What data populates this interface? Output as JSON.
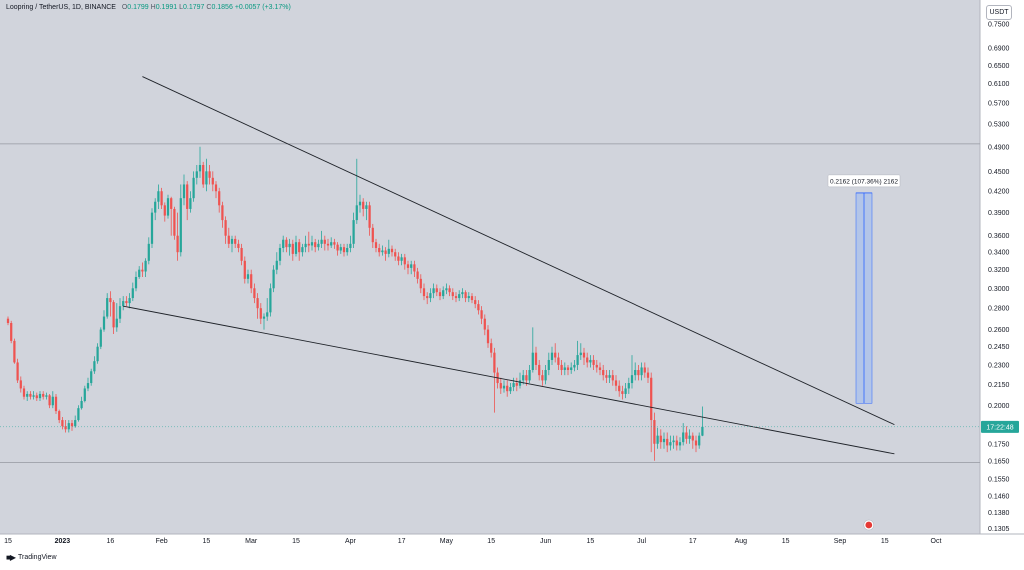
{
  "header": {
    "symbol": "Loopring / TetherUS, 1D, BINANCE",
    "ohlc": [
      {
        "label": "O",
        "value": "0.1799"
      },
      {
        "label": "H",
        "value": "0.1991"
      },
      {
        "label": "L",
        "value": "0.1797"
      },
      {
        "label": "C",
        "value": "0.1856"
      }
    ],
    "change": "+0.0057 (+3.17%)"
  },
  "currency": "USDT",
  "branding": "TradingView",
  "colors": {
    "background": "#d1d4dc",
    "up": "#26a69a",
    "down": "#ef5350",
    "trendline": "#1f2329",
    "measure_fill": "#a8c0ec",
    "measure_stroke": "#2962ff",
    "price_badge": "#26a69a"
  },
  "chart_data": {
    "type": "candlestick",
    "title": "Loopring / TetherUS, 1D, BINANCE",
    "log_scale": true,
    "y_range": [
      0.128,
      0.815
    ],
    "y_ticks": [
      "0.7500",
      "0.6900",
      "0.6500",
      "0.6100",
      "0.5700",
      "0.5300",
      "0.4900",
      "0.4500",
      "0.4200",
      "0.3900",
      "0.3600",
      "0.3400",
      "0.3200",
      "0.3000",
      "0.2800",
      "0.2600",
      "0.2450",
      "0.2300",
      "0.2150",
      "0.2000",
      "0.1750",
      "0.1650",
      "0.1550",
      "0.1460",
      "0.1380",
      "0.1305"
    ],
    "x_ticks": [
      {
        "label": "15",
        "date": "2022-12-15"
      },
      {
        "label": "2023",
        "date": "2023-01-01"
      },
      {
        "label": "16",
        "date": "2023-01-16"
      },
      {
        "label": "Feb",
        "date": "2023-02-01"
      },
      {
        "label": "15",
        "date": "2023-02-15"
      },
      {
        "label": "Mar",
        "date": "2023-03-01"
      },
      {
        "label": "15",
        "date": "2023-03-15"
      },
      {
        "label": "Apr",
        "date": "2023-04-01"
      },
      {
        "label": "17",
        "date": "2023-04-17"
      },
      {
        "label": "May",
        "date": "2023-05-01"
      },
      {
        "label": "15",
        "date": "2023-05-15"
      },
      {
        "label": "Jun",
        "date": "2023-06-01"
      },
      {
        "label": "15",
        "date": "2023-06-15"
      },
      {
        "label": "Jul",
        "date": "2023-07-01"
      },
      {
        "label": "17",
        "date": "2023-07-17"
      },
      {
        "label": "Aug",
        "date": "2023-08-01"
      },
      {
        "label": "15",
        "date": "2023-08-15"
      },
      {
        "label": "Sep",
        "date": "2023-09-01"
      },
      {
        "label": "15",
        "date": "2023-09-15"
      },
      {
        "label": "Oct",
        "date": "2023-10-01"
      }
    ],
    "start_date": "2022-12-15",
    "candles": [
      [
        0.27,
        0.266,
        0.272,
        0.264
      ],
      [
        0.266,
        0.25,
        0.268,
        0.248
      ],
      [
        0.25,
        0.232,
        0.252,
        0.231
      ],
      [
        0.232,
        0.218,
        0.235,
        0.216
      ],
      [
        0.218,
        0.212,
        0.221,
        0.209
      ],
      [
        0.212,
        0.206,
        0.214,
        0.204
      ],
      [
        0.206,
        0.208,
        0.21,
        0.203
      ],
      [
        0.208,
        0.206,
        0.21,
        0.204
      ],
      [
        0.206,
        0.207,
        0.21,
        0.204
      ],
      [
        0.207,
        0.205,
        0.209,
        0.203
      ],
      [
        0.205,
        0.208,
        0.21,
        0.203
      ],
      [
        0.208,
        0.206,
        0.21,
        0.204
      ],
      [
        0.206,
        0.207,
        0.209,
        0.204
      ],
      [
        0.207,
        0.2,
        0.208,
        0.198
      ],
      [
        0.2,
        0.206,
        0.21,
        0.198
      ],
      [
        0.206,
        0.196,
        0.208,
        0.194
      ],
      [
        0.196,
        0.19,
        0.197,
        0.188
      ],
      [
        0.19,
        0.186,
        0.192,
        0.184
      ],
      [
        0.186,
        0.184,
        0.19,
        0.182
      ],
      [
        0.184,
        0.188,
        0.19,
        0.182
      ],
      [
        0.188,
        0.186,
        0.19,
        0.183
      ],
      [
        0.186,
        0.19,
        0.193,
        0.185
      ],
      [
        0.19,
        0.198,
        0.2,
        0.189
      ],
      [
        0.198,
        0.203,
        0.206,
        0.197
      ],
      [
        0.203,
        0.212,
        0.214,
        0.202
      ],
      [
        0.212,
        0.216,
        0.22,
        0.21
      ],
      [
        0.216,
        0.225,
        0.227,
        0.214
      ],
      [
        0.225,
        0.233,
        0.237,
        0.223
      ],
      [
        0.233,
        0.245,
        0.248,
        0.231
      ],
      [
        0.245,
        0.26,
        0.262,
        0.243
      ],
      [
        0.26,
        0.272,
        0.278,
        0.258
      ],
      [
        0.272,
        0.29,
        0.295,
        0.27
      ],
      [
        0.29,
        0.286,
        0.297,
        0.272
      ],
      [
        0.286,
        0.262,
        0.288,
        0.256
      ],
      [
        0.262,
        0.27,
        0.285,
        0.258
      ],
      [
        0.27,
        0.282,
        0.29,
        0.266
      ],
      [
        0.282,
        0.287,
        0.292,
        0.278
      ],
      [
        0.287,
        0.285,
        0.292,
        0.282
      ],
      [
        0.285,
        0.29,
        0.295,
        0.28
      ],
      [
        0.29,
        0.3,
        0.306,
        0.287
      ],
      [
        0.3,
        0.312,
        0.318,
        0.297
      ],
      [
        0.312,
        0.32,
        0.324,
        0.31
      ],
      [
        0.32,
        0.318,
        0.328,
        0.312
      ],
      [
        0.318,
        0.33,
        0.333,
        0.312
      ],
      [
        0.33,
        0.35,
        0.358,
        0.326
      ],
      [
        0.35,
        0.39,
        0.396,
        0.345
      ],
      [
        0.39,
        0.405,
        0.41,
        0.38
      ],
      [
        0.405,
        0.42,
        0.43,
        0.395
      ],
      [
        0.42,
        0.4,
        0.425,
        0.395
      ],
      [
        0.4,
        0.386,
        0.404,
        0.378
      ],
      [
        0.386,
        0.41,
        0.415,
        0.382
      ],
      [
        0.41,
        0.395,
        0.412,
        0.36
      ],
      [
        0.395,
        0.36,
        0.398,
        0.355
      ],
      [
        0.36,
        0.34,
        0.39,
        0.33
      ],
      [
        0.34,
        0.41,
        0.43,
        0.335
      ],
      [
        0.41,
        0.43,
        0.445,
        0.4
      ],
      [
        0.43,
        0.395,
        0.435,
        0.38
      ],
      [
        0.395,
        0.41,
        0.42,
        0.39
      ],
      [
        0.41,
        0.44,
        0.45,
        0.405
      ],
      [
        0.44,
        0.45,
        0.46,
        0.43
      ],
      [
        0.45,
        0.46,
        0.49,
        0.44
      ],
      [
        0.46,
        0.43,
        0.465,
        0.425
      ],
      [
        0.43,
        0.45,
        0.47,
        0.42
      ],
      [
        0.45,
        0.44,
        0.46,
        0.43
      ],
      [
        0.44,
        0.43,
        0.45,
        0.42
      ],
      [
        0.43,
        0.42,
        0.435,
        0.41
      ],
      [
        0.42,
        0.4,
        0.425,
        0.39
      ],
      [
        0.4,
        0.38,
        0.405,
        0.37
      ],
      [
        0.38,
        0.36,
        0.385,
        0.35
      ],
      [
        0.36,
        0.35,
        0.37,
        0.345
      ],
      [
        0.35,
        0.356,
        0.36,
        0.34
      ],
      [
        0.356,
        0.35,
        0.36,
        0.345
      ],
      [
        0.35,
        0.345,
        0.355,
        0.34
      ],
      [
        0.345,
        0.33,
        0.35,
        0.325
      ],
      [
        0.33,
        0.31,
        0.335,
        0.305
      ],
      [
        0.31,
        0.315,
        0.32,
        0.305
      ],
      [
        0.315,
        0.3,
        0.32,
        0.295
      ],
      [
        0.3,
        0.29,
        0.305,
        0.285
      ],
      [
        0.29,
        0.28,
        0.295,
        0.27
      ],
      [
        0.28,
        0.27,
        0.285,
        0.265
      ],
      [
        0.27,
        0.272,
        0.275,
        0.26
      ],
      [
        0.272,
        0.276,
        0.29,
        0.268
      ],
      [
        0.276,
        0.3,
        0.305,
        0.272
      ],
      [
        0.3,
        0.32,
        0.325,
        0.296
      ],
      [
        0.32,
        0.33,
        0.34,
        0.315
      ],
      [
        0.33,
        0.345,
        0.35,
        0.325
      ],
      [
        0.345,
        0.355,
        0.36,
        0.34
      ],
      [
        0.355,
        0.346,
        0.358,
        0.34
      ],
      [
        0.346,
        0.35,
        0.356,
        0.336
      ],
      [
        0.35,
        0.338,
        0.355,
        0.33
      ],
      [
        0.338,
        0.352,
        0.36,
        0.335
      ],
      [
        0.352,
        0.34,
        0.356,
        0.33
      ],
      [
        0.34,
        0.346,
        0.35,
        0.335
      ],
      [
        0.346,
        0.35,
        0.36,
        0.34
      ],
      [
        0.35,
        0.348,
        0.365,
        0.34
      ],
      [
        0.348,
        0.352,
        0.36,
        0.342
      ],
      [
        0.352,
        0.346,
        0.356,
        0.34
      ],
      [
        0.346,
        0.35,
        0.355,
        0.342
      ],
      [
        0.35,
        0.355,
        0.366,
        0.345
      ],
      [
        0.355,
        0.35,
        0.36,
        0.342
      ],
      [
        0.35,
        0.348,
        0.356,
        0.342
      ],
      [
        0.348,
        0.352,
        0.358,
        0.345
      ],
      [
        0.352,
        0.349,
        0.356,
        0.344
      ],
      [
        0.349,
        0.342,
        0.352,
        0.336
      ],
      [
        0.342,
        0.346,
        0.35,
        0.338
      ],
      [
        0.346,
        0.34,
        0.35,
        0.335
      ],
      [
        0.34,
        0.345,
        0.35,
        0.336
      ],
      [
        0.345,
        0.35,
        0.36,
        0.34
      ],
      [
        0.35,
        0.38,
        0.39,
        0.345
      ],
      [
        0.38,
        0.4,
        0.47,
        0.375
      ],
      [
        0.4,
        0.405,
        0.415,
        0.39
      ],
      [
        0.405,
        0.395,
        0.41,
        0.385
      ],
      [
        0.395,
        0.4,
        0.405,
        0.38
      ],
      [
        0.4,
        0.37,
        0.405,
        0.36
      ],
      [
        0.37,
        0.352,
        0.375,
        0.345
      ],
      [
        0.352,
        0.345,
        0.356,
        0.34
      ],
      [
        0.345,
        0.34,
        0.35,
        0.335
      ],
      [
        0.34,
        0.342,
        0.348,
        0.336
      ],
      [
        0.342,
        0.338,
        0.346,
        0.33
      ],
      [
        0.338,
        0.344,
        0.355,
        0.334
      ],
      [
        0.344,
        0.34,
        0.348,
        0.335
      ],
      [
        0.34,
        0.335,
        0.344,
        0.33
      ],
      [
        0.335,
        0.33,
        0.34,
        0.325
      ],
      [
        0.33,
        0.334,
        0.338,
        0.325
      ],
      [
        0.334,
        0.326,
        0.338,
        0.32
      ],
      [
        0.326,
        0.322,
        0.33,
        0.315
      ],
      [
        0.322,
        0.326,
        0.33,
        0.315
      ],
      [
        0.326,
        0.318,
        0.33,
        0.312
      ],
      [
        0.318,
        0.31,
        0.322,
        0.305
      ],
      [
        0.31,
        0.3,
        0.315,
        0.295
      ],
      [
        0.3,
        0.292,
        0.305,
        0.288
      ],
      [
        0.292,
        0.29,
        0.296,
        0.284
      ],
      [
        0.29,
        0.295,
        0.3,
        0.286
      ],
      [
        0.295,
        0.3,
        0.305,
        0.29
      ],
      [
        0.3,
        0.296,
        0.304,
        0.292
      ],
      [
        0.296,
        0.292,
        0.3,
        0.288
      ],
      [
        0.292,
        0.298,
        0.302,
        0.289
      ],
      [
        0.298,
        0.3,
        0.305,
        0.294
      ],
      [
        0.3,
        0.296,
        0.303,
        0.292
      ],
      [
        0.296,
        0.292,
        0.3,
        0.288
      ],
      [
        0.292,
        0.29,
        0.296,
        0.286
      ],
      [
        0.29,
        0.294,
        0.298,
        0.287
      ],
      [
        0.294,
        0.296,
        0.3,
        0.29
      ],
      [
        0.296,
        0.29,
        0.298,
        0.286
      ],
      [
        0.29,
        0.292,
        0.296,
        0.286
      ],
      [
        0.292,
        0.288,
        0.295,
        0.285
      ],
      [
        0.288,
        0.284,
        0.292,
        0.28
      ],
      [
        0.284,
        0.278,
        0.288,
        0.274
      ],
      [
        0.278,
        0.27,
        0.282,
        0.265
      ],
      [
        0.27,
        0.26,
        0.274,
        0.255
      ],
      [
        0.26,
        0.248,
        0.264,
        0.244
      ],
      [
        0.248,
        0.24,
        0.252,
        0.236
      ],
      [
        0.24,
        0.224,
        0.244,
        0.195
      ],
      [
        0.224,
        0.216,
        0.228,
        0.212
      ],
      [
        0.216,
        0.212,
        0.22,
        0.208
      ],
      [
        0.212,
        0.214,
        0.218,
        0.209
      ],
      [
        0.214,
        0.21,
        0.218,
        0.206
      ],
      [
        0.21,
        0.213,
        0.216,
        0.208
      ],
      [
        0.213,
        0.216,
        0.22,
        0.21
      ],
      [
        0.216,
        0.214,
        0.22,
        0.21
      ],
      [
        0.214,
        0.218,
        0.224,
        0.212
      ],
      [
        0.218,
        0.222,
        0.226,
        0.215
      ],
      [
        0.222,
        0.218,
        0.226,
        0.214
      ],
      [
        0.218,
        0.226,
        0.23,
        0.216
      ],
      [
        0.226,
        0.24,
        0.262,
        0.224
      ],
      [
        0.24,
        0.23,
        0.245,
        0.226
      ],
      [
        0.23,
        0.222,
        0.234,
        0.218
      ],
      [
        0.222,
        0.218,
        0.226,
        0.214
      ],
      [
        0.218,
        0.226,
        0.23,
        0.215
      ],
      [
        0.226,
        0.234,
        0.24,
        0.222
      ],
      [
        0.234,
        0.24,
        0.245,
        0.23
      ],
      [
        0.24,
        0.236,
        0.248,
        0.232
      ],
      [
        0.236,
        0.23,
        0.24,
        0.226
      ],
      [
        0.23,
        0.226,
        0.234,
        0.222
      ],
      [
        0.226,
        0.228,
        0.232,
        0.222
      ],
      [
        0.228,
        0.226,
        0.23,
        0.222
      ],
      [
        0.226,
        0.228,
        0.232,
        0.223
      ],
      [
        0.228,
        0.23,
        0.234,
        0.225
      ],
      [
        0.23,
        0.238,
        0.25,
        0.226
      ],
      [
        0.238,
        0.24,
        0.248,
        0.234
      ],
      [
        0.24,
        0.236,
        0.244,
        0.23
      ],
      [
        0.236,
        0.232,
        0.24,
        0.228
      ],
      [
        0.232,
        0.234,
        0.238,
        0.228
      ],
      [
        0.234,
        0.23,
        0.238,
        0.226
      ],
      [
        0.23,
        0.228,
        0.234,
        0.224
      ],
      [
        0.228,
        0.226,
        0.232,
        0.222
      ],
      [
        0.226,
        0.222,
        0.23,
        0.218
      ],
      [
        0.222,
        0.22,
        0.226,
        0.216
      ],
      [
        0.22,
        0.222,
        0.226,
        0.216
      ],
      [
        0.222,
        0.218,
        0.226,
        0.214
      ],
      [
        0.218,
        0.214,
        0.222,
        0.21
      ],
      [
        0.214,
        0.21,
        0.218,
        0.206
      ],
      [
        0.21,
        0.208,
        0.214,
        0.204
      ],
      [
        0.208,
        0.212,
        0.216,
        0.205
      ],
      [
        0.212,
        0.216,
        0.22,
        0.208
      ],
      [
        0.216,
        0.222,
        0.238,
        0.212
      ],
      [
        0.222,
        0.226,
        0.232,
        0.218
      ],
      [
        0.226,
        0.222,
        0.23,
        0.218
      ],
      [
        0.222,
        0.228,
        0.232,
        0.218
      ],
      [
        0.228,
        0.224,
        0.232,
        0.22
      ],
      [
        0.224,
        0.22,
        0.228,
        0.216
      ],
      [
        0.22,
        0.19,
        0.224,
        0.17
      ],
      [
        0.19,
        0.175,
        0.195,
        0.165
      ],
      [
        0.175,
        0.18,
        0.185,
        0.172
      ],
      [
        0.18,
        0.176,
        0.184,
        0.172
      ],
      [
        0.176,
        0.178,
        0.182,
        0.172
      ],
      [
        0.178,
        0.174,
        0.182,
        0.17
      ],
      [
        0.174,
        0.176,
        0.18,
        0.171
      ],
      [
        0.176,
        0.177,
        0.18,
        0.172
      ],
      [
        0.177,
        0.174,
        0.18,
        0.171
      ],
      [
        0.174,
        0.176,
        0.179,
        0.171
      ],
      [
        0.176,
        0.182,
        0.188,
        0.174
      ],
      [
        0.182,
        0.178,
        0.186,
        0.175
      ],
      [
        0.178,
        0.18,
        0.184,
        0.175
      ],
      [
        0.18,
        0.177,
        0.182,
        0.172
      ],
      [
        0.177,
        0.174,
        0.18,
        0.17
      ],
      [
        0.174,
        0.18,
        0.182,
        0.172
      ],
      [
        0.18,
        0.1856,
        0.1991,
        0.1797
      ]
    ],
    "trendlines": [
      {
        "start_date": "2023-01-26",
        "start_price": 0.625,
        "end_date": "2023-09-18",
        "end_price": 0.187
      },
      {
        "start_date": "2023-01-20",
        "start_price": 0.282,
        "end_date": "2023-09-18",
        "end_price": 0.169
      }
    ],
    "measure": {
      "label": "0.2162 (107.36%) 2162",
      "start_date": "2023-09-06",
      "end_date": "2023-09-11",
      "from_price": 0.2014,
      "to_price": 0.4176
    },
    "last_price_label": "17:22:48",
    "last_price": 0.1856,
    "reference_prices": [
      0.495,
      0.164
    ]
  }
}
